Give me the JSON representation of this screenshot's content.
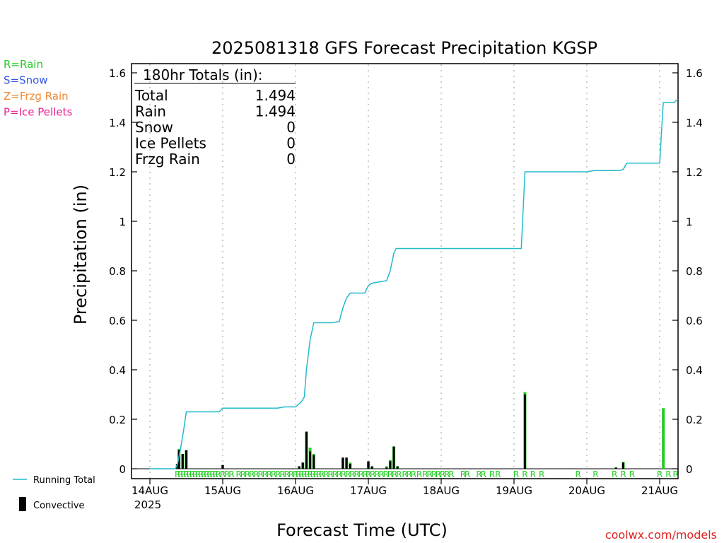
{
  "chart_data": {
    "type": "bar+line",
    "title": "2025081318 GFS Forecast Precipitation KGSP",
    "xlabel": "Forecast Time (UTC)",
    "ylabel": "Precipitation (in)",
    "ylim": [
      0,
      1.6
    ],
    "y_ticks": [
      0,
      0.2,
      0.4,
      0.6,
      0.8,
      1,
      1.2,
      1.4,
      1.6
    ],
    "y_tick_labels": [
      "0",
      "0.2",
      "0.4",
      "0.6",
      "0.8",
      "1",
      "1.2",
      "1.4",
      "1.6"
    ],
    "x_range_days_start": "14AUG",
    "x_tick_labels": [
      "14AUG",
      "15AUG",
      "16AUG",
      "17AUG",
      "18AUG",
      "19AUG",
      "20AUG",
      "21AUG"
    ],
    "x_year_label": "2025",
    "grid": "vertical dotted at each day",
    "precip_type_legend": [
      {
        "label": "R=Rain",
        "color": "#22cc22"
      },
      {
        "label": "S=Snow",
        "color": "#3355ee"
      },
      {
        "label": "Z=Frzg Rain",
        "color": "#ee8833"
      },
      {
        "label": "P=Ice Pellets",
        "color": "#ee2299"
      }
    ],
    "series_legend": [
      {
        "label": "Running Total",
        "color": "#22bbcc"
      },
      {
        "label": "Convective",
        "color": "#000000"
      }
    ],
    "totals": {
      "heading": "180hr Totals (in):",
      "rows": [
        {
          "label": "Total",
          "value": "1.494"
        },
        {
          "label": "Rain",
          "value": "1.494"
        },
        {
          "label": "Snow",
          "value": "0"
        },
        {
          "label": "Ice Pellets",
          "value": "0"
        },
        {
          "label": "Frzg Rain",
          "value": "0"
        }
      ]
    },
    "running_total": [
      [
        0,
        0
      ],
      [
        0.35,
        0
      ],
      [
        0.38,
        0.02
      ],
      [
        0.42,
        0.08
      ],
      [
        0.46,
        0.15
      ],
      [
        0.5,
        0.23
      ],
      [
        0.95,
        0.23
      ],
      [
        1.0,
        0.245
      ],
      [
        1.75,
        0.245
      ],
      [
        1.85,
        0.25
      ],
      [
        2.0,
        0.25
      ],
      [
        2.08,
        0.27
      ],
      [
        2.12,
        0.29
      ],
      [
        2.15,
        0.4
      ],
      [
        2.2,
        0.52
      ],
      [
        2.25,
        0.59
      ],
      [
        2.5,
        0.59
      ],
      [
        2.6,
        0.595
      ],
      [
        2.65,
        0.65
      ],
      [
        2.7,
        0.69
      ],
      [
        2.75,
        0.71
      ],
      [
        2.95,
        0.71
      ],
      [
        3.0,
        0.74
      ],
      [
        3.05,
        0.75
      ],
      [
        3.15,
        0.755
      ],
      [
        3.25,
        0.76
      ],
      [
        3.3,
        0.8
      ],
      [
        3.35,
        0.87
      ],
      [
        3.38,
        0.89
      ],
      [
        4.0,
        0.89
      ],
      [
        5.1,
        0.89
      ],
      [
        5.15,
        1.2
      ],
      [
        6.0,
        1.2
      ],
      [
        6.1,
        1.205
      ],
      [
        6.45,
        1.205
      ],
      [
        6.5,
        1.21
      ],
      [
        6.55,
        1.235
      ],
      [
        7.0,
        1.235
      ],
      [
        7.05,
        1.48
      ],
      [
        7.2,
        1.48
      ],
      [
        7.25,
        1.494
      ]
    ],
    "precip_bars": [
      {
        "x": 0.375,
        "total": 0.02,
        "convective": 0.02
      },
      {
        "x": 0.4,
        "total": 0.08,
        "convective": 0.075
      },
      {
        "x": 0.45,
        "total": 0.06,
        "convective": 0.06
      },
      {
        "x": 0.5,
        "total": 0.075,
        "convective": 0.075
      },
      {
        "x": 1.0,
        "total": 0.015,
        "convective": 0.015
      },
      {
        "x": 2.05,
        "total": 0.01,
        "convective": 0.01
      },
      {
        "x": 2.1,
        "total": 0.025,
        "convective": 0.025
      },
      {
        "x": 2.15,
        "total": 0.15,
        "convective": 0.15
      },
      {
        "x": 2.2,
        "total": 0.085,
        "convective": 0.07
      },
      {
        "x": 2.25,
        "total": 0.06,
        "convective": 0.055
      },
      {
        "x": 2.65,
        "total": 0.045,
        "convective": 0.045
      },
      {
        "x": 2.7,
        "total": 0.045,
        "convective": 0.045
      },
      {
        "x": 2.75,
        "total": 0.025,
        "convective": 0.02
      },
      {
        "x": 3.0,
        "total": 0.03,
        "convective": 0.03
      },
      {
        "x": 3.05,
        "total": 0.01,
        "convective": 0.01
      },
      {
        "x": 3.25,
        "total": 0.01,
        "convective": 0.005
      },
      {
        "x": 3.3,
        "total": 0.035,
        "convective": 0.03
      },
      {
        "x": 3.35,
        "total": 0.09,
        "convective": 0.09
      },
      {
        "x": 3.4,
        "total": 0.01,
        "convective": 0.01
      },
      {
        "x": 5.15,
        "total": 0.31,
        "convective": 0.3
      },
      {
        "x": 6.4,
        "total": 0.005,
        "convective": 0.005
      },
      {
        "x": 6.5,
        "total": 0.028,
        "convective": 0.025
      },
      {
        "x": 7.05,
        "total": 0.245,
        "convective": 0
      }
    ],
    "ptype_marks": {
      "letter": "R",
      "positions": [
        0.38,
        0.42,
        0.46,
        0.5,
        0.54,
        0.58,
        0.62,
        0.66,
        0.7,
        0.74,
        0.78,
        0.82,
        0.86,
        0.9,
        0.94,
        1.0,
        1.06,
        1.12,
        1.22,
        1.28,
        1.34,
        1.4,
        1.46,
        1.52,
        1.58,
        1.64,
        1.7,
        1.76,
        1.82,
        1.88,
        1.94,
        2.0,
        2.04,
        2.08,
        2.12,
        2.16,
        2.2,
        2.24,
        2.28,
        2.32,
        2.36,
        2.42,
        2.48,
        2.54,
        2.6,
        2.66,
        2.72,
        2.78,
        2.84,
        2.9,
        2.96,
        3.0,
        3.06,
        3.12,
        3.18,
        3.24,
        3.3,
        3.36,
        3.42,
        3.5,
        3.56,
        3.62,
        3.7,
        3.78,
        3.84,
        3.9,
        3.96,
        4.02,
        4.08,
        4.14,
        4.3,
        4.36,
        4.52,
        4.58,
        4.7,
        4.78,
        5.03,
        5.15,
        5.26,
        5.38,
        5.88,
        6.12,
        6.38,
        6.5,
        6.62,
        7.0,
        7.12,
        7.22
      ]
    }
  },
  "credit": "coolwx.com/models"
}
